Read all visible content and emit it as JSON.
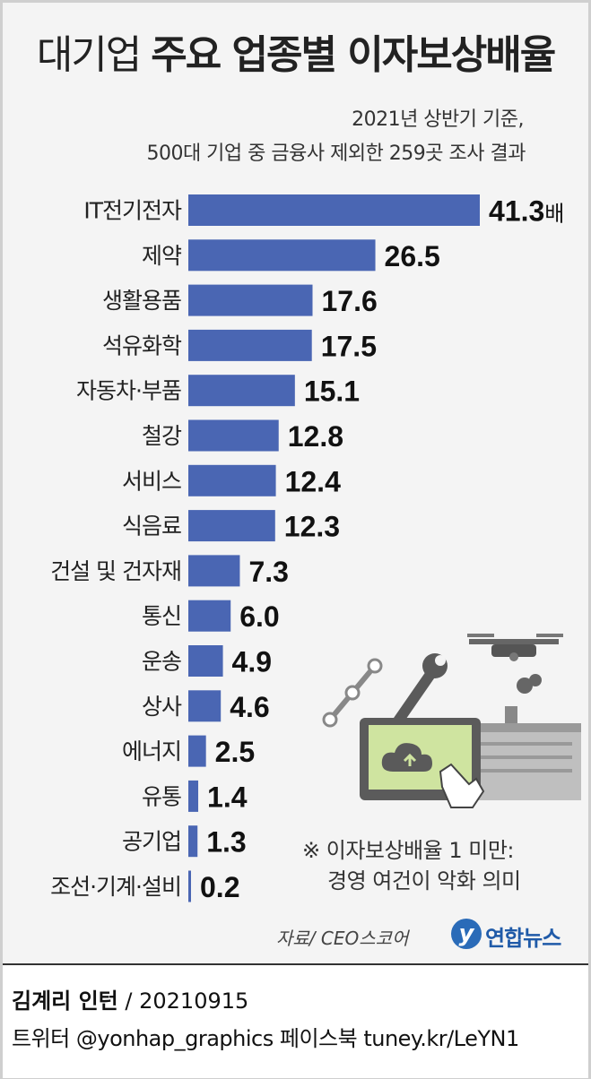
{
  "header": {
    "title_light": "대기업",
    "title_bold": "주요 업종별 이자보상배율",
    "subtitle_line1": "2021년 상반기 기준,",
    "subtitle_line2": "500대 기업 중 금융사 제외한 259곳 조사 결과"
  },
  "chart_data": {
    "type": "bar",
    "orientation": "horizontal",
    "categories": [
      "IT전기전자",
      "제약",
      "생활용품",
      "석유화학",
      "자동차·부품",
      "철강",
      "서비스",
      "식음료",
      "건설 및 건자재",
      "통신",
      "운송",
      "상사",
      "에너지",
      "유통",
      "공기업",
      "조선·기계·설비"
    ],
    "values": [
      41.3,
      26.5,
      17.6,
      17.5,
      15.1,
      12.8,
      12.4,
      12.3,
      7.3,
      6.0,
      4.9,
      4.6,
      2.5,
      1.4,
      1.3,
      0.2
    ],
    "value_labels": [
      "41.3",
      "26.5",
      "17.6",
      "17.5",
      "15.1",
      "12.8",
      "12.4",
      "12.3",
      "7.3",
      "6.0",
      "4.9",
      "4.6",
      "2.5",
      "1.4",
      "1.3",
      "0.2"
    ],
    "unit_suffix": "배",
    "bar_color": "#4a66b3",
    "grid": false
  },
  "note": {
    "line1": "※ 이자보상배율 1 미만:",
    "line2": "경영 여건이 악화 의미"
  },
  "source": "자료/ CEO스코어",
  "logo": {
    "mark": "y",
    "text": "연합뉴스"
  },
  "footer": {
    "author": "김계리 인턴",
    "date": " / 20210915",
    "social": "트위터 @yonhap_graphics  페이스북 tuney.kr/LeYN1"
  }
}
